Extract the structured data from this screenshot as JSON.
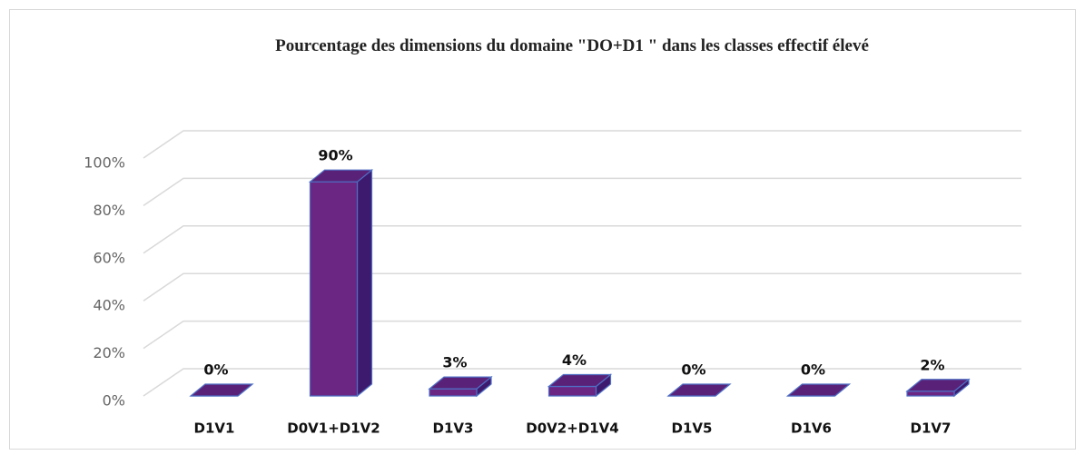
{
  "chart_data": {
    "type": "bar3d",
    "title": "Pourcentage des dimensions du domaine \"DO+D1 \" dans les classes effectif élevé",
    "categories": [
      "D1V1",
      "D0V1+D1V2",
      "D1V3",
      "D0V2+D1V4",
      "D1V5",
      "D1V6",
      "D1V7"
    ],
    "values": [
      0,
      90,
      3,
      4,
      0,
      0,
      2
    ],
    "value_labels": [
      "0%",
      "90%",
      "3%",
      "4%",
      "0%",
      "0%",
      "2%"
    ],
    "color": "#6b2683",
    "ylim": [
      0,
      100
    ],
    "yticks": [
      {
        "value": 0,
        "label": "0%"
      },
      {
        "value": 20,
        "label": "20%"
      },
      {
        "value": 40,
        "label": "40%"
      },
      {
        "value": 60,
        "label": "60%"
      },
      {
        "value": 80,
        "label": "80%"
      },
      {
        "value": 100,
        "label": "100%"
      }
    ],
    "grid": true
  }
}
